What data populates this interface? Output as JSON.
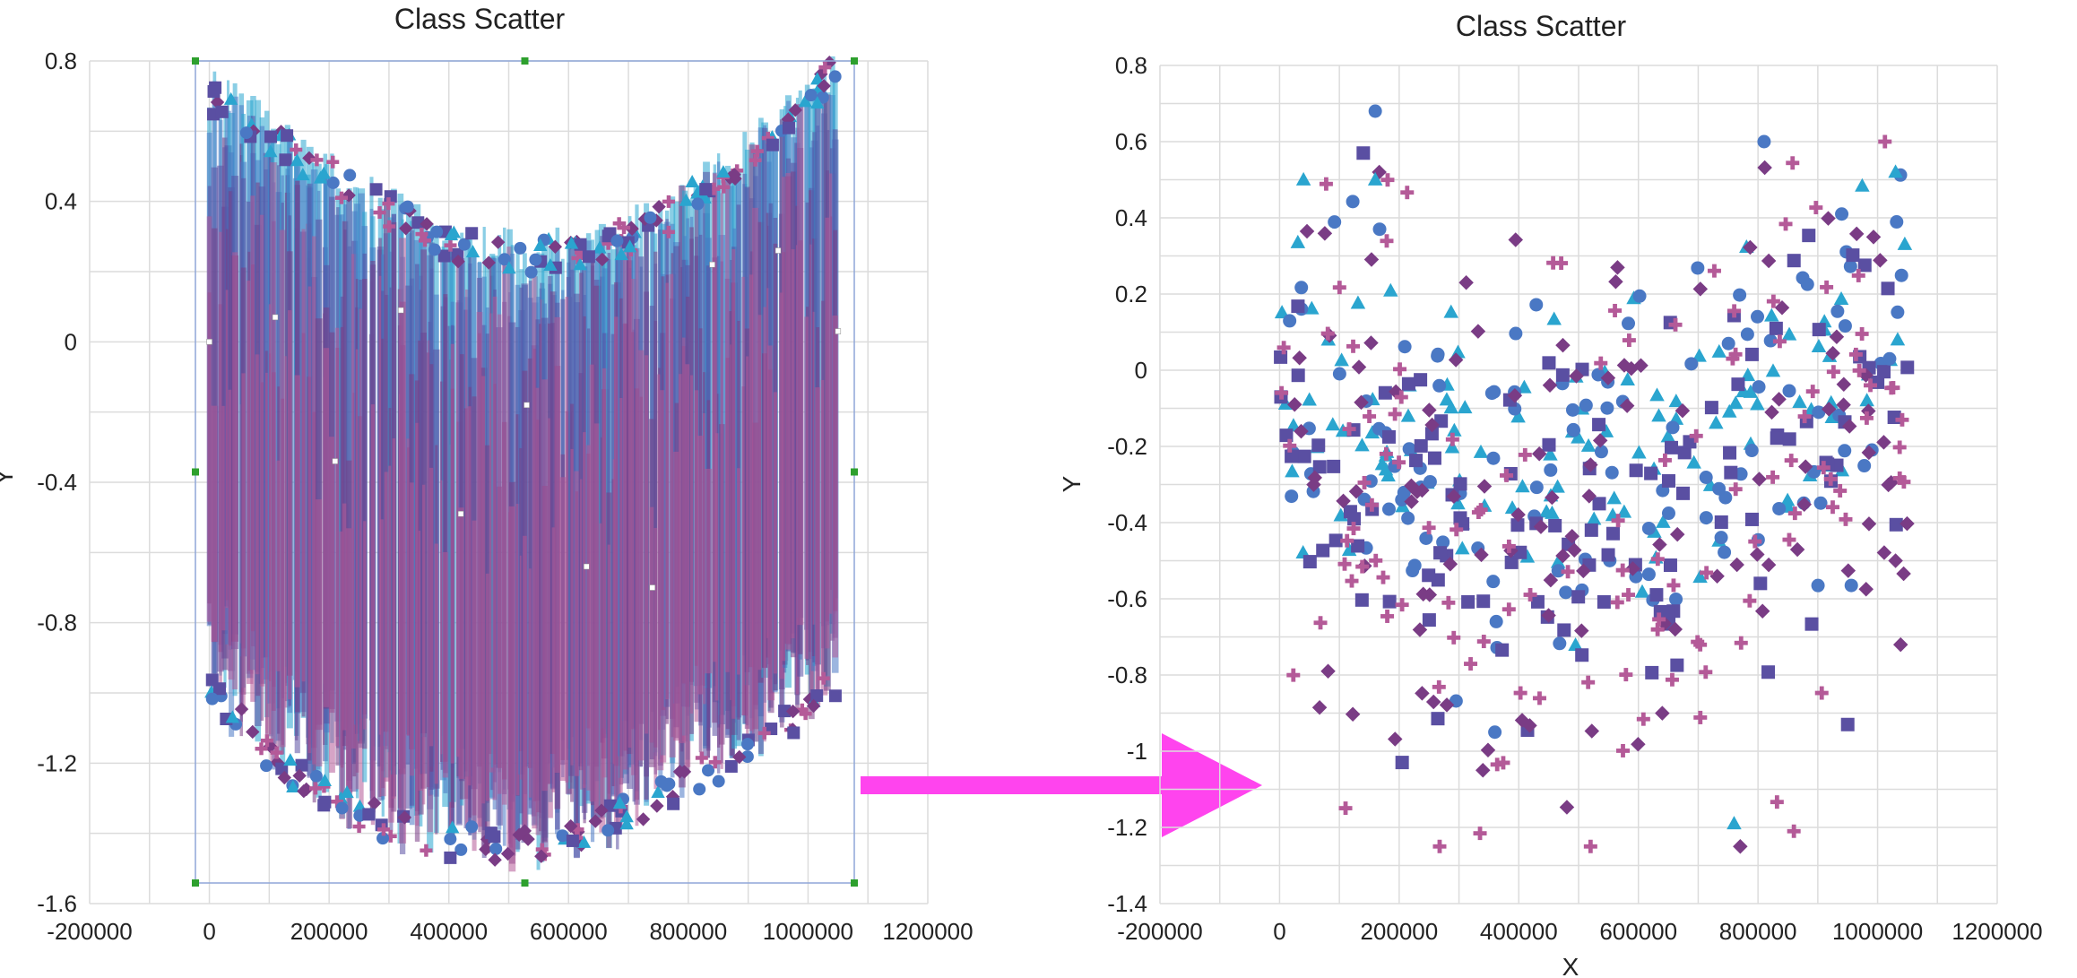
{
  "chart_data": [
    {
      "type": "scatter",
      "title": "Class Scatter",
      "xlabel": "",
      "ylabel": "Y",
      "xlim": [
        -200000,
        1200000
      ],
      "ylim": [
        -1.6,
        0.8
      ],
      "xticks": [
        "-200000",
        "0",
        "200000",
        "400000",
        "600000",
        "800000",
        "1000000",
        "1200000"
      ],
      "yticks": [
        "0.8",
        "0.4",
        "0",
        "-0.4",
        "-0.8",
        "-1.2",
        "-1.6"
      ],
      "grid": true,
      "selected": true,
      "series": [
        {
          "marker": "triangle",
          "color": "#2aa5cf"
        },
        {
          "marker": "circle",
          "color": "#4a78c4"
        },
        {
          "marker": "square",
          "color": "#5a4fa2"
        },
        {
          "marker": "diamond",
          "color": "#7a3c85"
        },
        {
          "marker": "plus",
          "color": "#b45a98"
        }
      ],
      "x_range": [
        0,
        1050000
      ],
      "y_range_top": 0.75,
      "y_range_bottom": -1.47,
      "label_points": [
        {
          "x": 0,
          "y": 0
        },
        {
          "x": 110000,
          "y": 0.07
        },
        {
          "x": 210000,
          "y": -0.34
        },
        {
          "x": 320000,
          "y": 0.09
        },
        {
          "x": 420000,
          "y": -0.49
        },
        {
          "x": 530000,
          "y": -0.18
        },
        {
          "x": 630000,
          "y": -0.64
        },
        {
          "x": 740000,
          "y": -0.7
        },
        {
          "x": 840000,
          "y": 0.22
        },
        {
          "x": 950000,
          "y": 0.26
        },
        {
          "x": 1050000,
          "y": 0.03
        }
      ]
    },
    {
      "type": "scatter",
      "title": "Class Scatter",
      "xlabel": "X",
      "ylabel": "Y",
      "xlim": [
        -200000,
        1200000
      ],
      "ylim": [
        -1.4,
        0.8
      ],
      "xticks": [
        "-200000",
        "0",
        "200000",
        "400000",
        "600000",
        "800000",
        "1000000",
        "1200000"
      ],
      "yticks": [
        "0.8",
        "0.6",
        "0.4",
        "0.2",
        "0",
        "-0.2",
        "-0.4",
        "-0.6",
        "-0.8",
        "-1",
        "-1.2",
        "-1.4"
      ],
      "grid": true,
      "series": [
        {
          "marker": "triangle",
          "color": "#2aa5cf"
        },
        {
          "marker": "circle",
          "color": "#4a78c4"
        },
        {
          "marker": "square",
          "color": "#5a4fa2"
        },
        {
          "marker": "diamond",
          "color": "#7a3c85"
        },
        {
          "marker": "plus",
          "color": "#b45a98"
        }
      ],
      "points_per_series": 120,
      "x_range": [
        0,
        1050000
      ],
      "notable_points": [
        {
          "series": 1,
          "x": 160000,
          "y": 0.68
        },
        {
          "series": 2,
          "x": 140000,
          "y": 0.57
        },
        {
          "series": 0,
          "x": 40000,
          "y": 0.5
        },
        {
          "series": 0,
          "x": 160000,
          "y": 0.5
        },
        {
          "series": 0,
          "x": 1030000,
          "y": 0.52
        },
        {
          "series": 1,
          "x": 940000,
          "y": 0.41
        },
        {
          "series": 1,
          "x": 360000,
          "y": -0.95
        },
        {
          "series": 3,
          "x": 340000,
          "y": -1.05
        },
        {
          "series": 4,
          "x": 520000,
          "y": -1.25
        },
        {
          "series": 0,
          "x": 760000,
          "y": -1.19
        },
        {
          "series": 4,
          "x": 860000,
          "y": -1.21
        },
        {
          "series": 2,
          "x": 950000,
          "y": -0.93
        },
        {
          "series": 1,
          "x": 1020000,
          "y": 0.03
        },
        {
          "series": 3,
          "x": 1030000,
          "y": -0.5
        }
      ]
    }
  ],
  "arrow": {
    "color": "#ff44ee"
  },
  "markers": {
    "handle_color": "#2ea02e"
  }
}
